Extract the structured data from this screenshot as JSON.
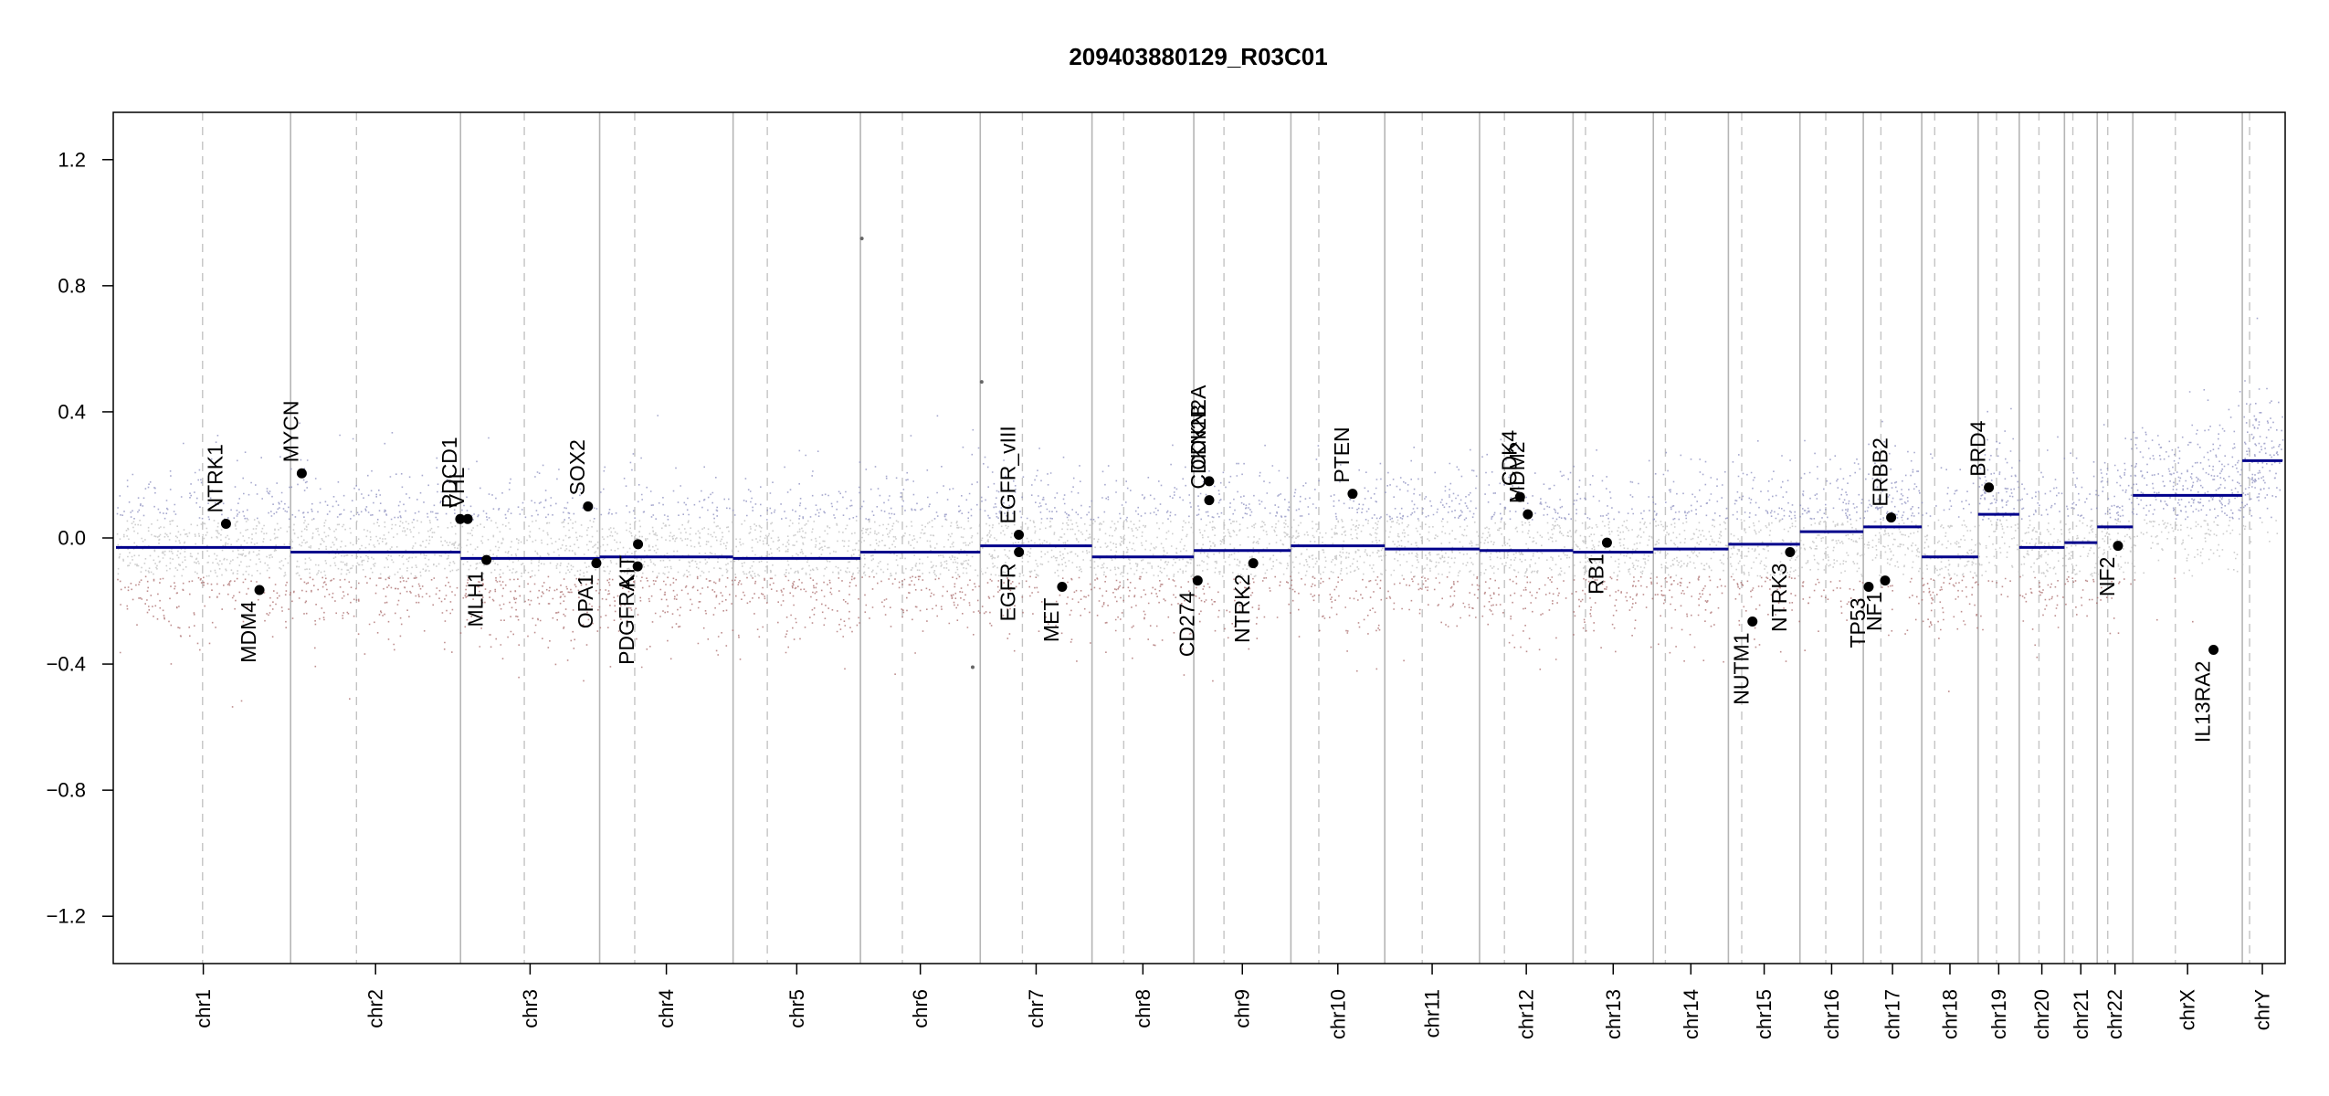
{
  "chart_data": {
    "type": "scatter",
    "title": "209403880129_R03C01",
    "xlabel": "",
    "ylabel": "",
    "ylim": [
      -1.35,
      1.35
    ],
    "yticks": [
      -1.2,
      -0.8,
      -0.4,
      0.0,
      0.4,
      0.8,
      1.2
    ],
    "ytick_labels": [
      "−1.2",
      "−0.8",
      "−0.4",
      "0.0",
      "0.4",
      "0.8",
      "1.2"
    ],
    "grid": false,
    "x_axis_note": "genomic position in Mb, chromosomes concatenated",
    "chromosomes": [
      {
        "name": "chr1",
        "length": 248.9,
        "centromere": 123.4,
        "segments": [
          {
            "start": 0,
            "end": 248.9,
            "value": -0.03
          }
        ]
      },
      {
        "name": "chr2",
        "length": 242.2,
        "centromere": 93.9,
        "segments": [
          {
            "start": 0,
            "end": 242.2,
            "value": -0.045
          }
        ]
      },
      {
        "name": "chr3",
        "length": 198.3,
        "centromere": 90.9,
        "segments": [
          {
            "start": 0,
            "end": 198.3,
            "value": -0.065
          }
        ]
      },
      {
        "name": "chr4",
        "length": 190.2,
        "centromere": 50.0,
        "segments": [
          {
            "start": 0,
            "end": 190.2,
            "value": -0.06
          }
        ]
      },
      {
        "name": "chr5",
        "length": 181.5,
        "centromere": 48.8,
        "segments": [
          {
            "start": 0,
            "end": 181.5,
            "value": -0.065
          }
        ]
      },
      {
        "name": "chr6",
        "length": 170.8,
        "centromere": 59.8,
        "segments": [
          {
            "start": 0,
            "end": 170.8,
            "value": -0.045
          }
        ]
      },
      {
        "name": "chr7",
        "length": 159.3,
        "centromere": 60.1,
        "segments": [
          {
            "start": 0,
            "end": 159.3,
            "value": -0.025
          }
        ]
      },
      {
        "name": "chr8",
        "length": 145.1,
        "centromere": 45.2,
        "segments": [
          {
            "start": 0,
            "end": 145.1,
            "value": -0.06
          }
        ]
      },
      {
        "name": "chr9",
        "length": 138.4,
        "centromere": 43.0,
        "segments": [
          {
            "start": 0,
            "end": 138.4,
            "value": -0.04
          }
        ]
      },
      {
        "name": "chr10",
        "length": 133.8,
        "centromere": 39.8,
        "segments": [
          {
            "start": 0,
            "end": 133.8,
            "value": -0.025
          }
        ]
      },
      {
        "name": "chr11",
        "length": 135.1,
        "centromere": 53.4,
        "segments": [
          {
            "start": 0,
            "end": 135.1,
            "value": -0.035
          }
        ]
      },
      {
        "name": "chr12",
        "length": 133.3,
        "centromere": 35.5,
        "segments": [
          {
            "start": 0,
            "end": 133.3,
            "value": -0.04
          }
        ]
      },
      {
        "name": "chr13",
        "length": 114.4,
        "centromere": 17.7,
        "segments": [
          {
            "start": 0,
            "end": 114.4,
            "value": -0.045
          }
        ]
      },
      {
        "name": "chr14",
        "length": 107.0,
        "centromere": 17.2,
        "segments": [
          {
            "start": 0,
            "end": 107.0,
            "value": -0.035
          }
        ]
      },
      {
        "name": "chr15",
        "length": 102.0,
        "centromere": 19.0,
        "segments": [
          {
            "start": 0,
            "end": 102.0,
            "value": -0.02
          }
        ]
      },
      {
        "name": "chr16",
        "length": 90.3,
        "centromere": 36.8,
        "segments": [
          {
            "start": 0,
            "end": 90.3,
            "value": 0.02
          }
        ]
      },
      {
        "name": "chr17",
        "length": 83.3,
        "centromere": 25.1,
        "segments": [
          {
            "start": 0,
            "end": 83.3,
            "value": 0.035
          }
        ]
      },
      {
        "name": "chr18",
        "length": 80.4,
        "centromere": 18.5,
        "segments": [
          {
            "start": 0,
            "end": 80.4,
            "value": -0.06
          }
        ]
      },
      {
        "name": "chr19",
        "length": 58.6,
        "centromere": 26.2,
        "segments": [
          {
            "start": 0,
            "end": 58.6,
            "value": 0.075
          }
        ]
      },
      {
        "name": "chr20",
        "length": 64.4,
        "centromere": 28.1,
        "segments": [
          {
            "start": 0,
            "end": 64.4,
            "value": -0.03
          }
        ]
      },
      {
        "name": "chr21",
        "length": 46.7,
        "centromere": 12.0,
        "segments": [
          {
            "start": 0,
            "end": 46.7,
            "value": -0.015
          }
        ]
      },
      {
        "name": "chr22",
        "length": 50.8,
        "centromere": 15.0,
        "segments": [
          {
            "start": 0,
            "end": 50.8,
            "value": 0.035
          }
        ]
      },
      {
        "name": "chrX",
        "length": 156.0,
        "centromere": 60.6,
        "segments": [
          {
            "start": 0,
            "end": 156.0,
            "value": 0.135
          }
        ]
      },
      {
        "name": "chrY",
        "length": 57.2,
        "centromere": 10.4,
        "segments": [
          {
            "start": 0,
            "end": 57.2,
            "value": 0.245
          }
        ]
      }
    ],
    "genes": [
      {
        "name": "NTRK1",
        "chr": "chr1",
        "pos": 156.8,
        "value": 0.045,
        "side": "above"
      },
      {
        "name": "MDM4",
        "chr": "chr1",
        "pos": 204.5,
        "value": -0.165,
        "side": "below"
      },
      {
        "name": "MYCN",
        "chr": "chr2",
        "pos": 15.9,
        "value": 0.205,
        "side": "above"
      },
      {
        "name": "PDCD1",
        "chr": "chr2",
        "pos": 241.8,
        "value": 0.06,
        "side": "above"
      },
      {
        "name": "VHL",
        "chr": "chr3",
        "pos": 10.2,
        "value": 0.06,
        "side": "above"
      },
      {
        "name": "MLH1",
        "chr": "chr3",
        "pos": 37.0,
        "value": -0.07,
        "side": "below"
      },
      {
        "name": "SOX2",
        "chr": "chr3",
        "pos": 181.7,
        "value": 0.1,
        "side": "above"
      },
      {
        "name": "OPA1",
        "chr": "chr3",
        "pos": 193.6,
        "value": -0.08,
        "side": "below"
      },
      {
        "name": "PDGFRA",
        "chr": "chr4",
        "pos": 54.2,
        "value": -0.09,
        "side": "below"
      },
      {
        "name": "KIT",
        "chr": "chr4",
        "pos": 54.7,
        "value": -0.02,
        "side": "below"
      },
      {
        "name": "EGFR_vIII",
        "chr": "chr7",
        "pos": 55.0,
        "value": 0.01,
        "side": "above"
      },
      {
        "name": "EGFR",
        "chr": "chr7",
        "pos": 55.2,
        "value": -0.045,
        "side": "below"
      },
      {
        "name": "MET",
        "chr": "chr7",
        "pos": 116.7,
        "value": -0.155,
        "side": "below"
      },
      {
        "name": "CD274",
        "chr": "chr9",
        "pos": 5.5,
        "value": -0.135,
        "side": "below"
      },
      {
        "name": "CDKN2A",
        "chr": "chr9",
        "pos": 21.9,
        "value": 0.18,
        "side": "above"
      },
      {
        "name": "CDKN2B",
        "chr": "chr9",
        "pos": 22.0,
        "value": 0.12,
        "side": "above"
      },
      {
        "name": "NTRK2",
        "chr": "chr9",
        "pos": 84.7,
        "value": -0.08,
        "side": "below"
      },
      {
        "name": "PTEN",
        "chr": "chr10",
        "pos": 87.9,
        "value": 0.14,
        "side": "above"
      },
      {
        "name": "CDK4",
        "chr": "chr12",
        "pos": 57.7,
        "value": 0.13,
        "side": "above"
      },
      {
        "name": "MDM2",
        "chr": "chr12",
        "pos": 68.8,
        "value": 0.075,
        "side": "above"
      },
      {
        "name": "RB1",
        "chr": "chr13",
        "pos": 48.3,
        "value": -0.015,
        "side": "below"
      },
      {
        "name": "NUTM1",
        "chr": "chr15",
        "pos": 34.3,
        "value": -0.265,
        "side": "below"
      },
      {
        "name": "NTRK3",
        "chr": "chr15",
        "pos": 87.9,
        "value": -0.045,
        "side": "below"
      },
      {
        "name": "TP53",
        "chr": "chr17",
        "pos": 7.6,
        "value": -0.155,
        "side": "below"
      },
      {
        "name": "NF1",
        "chr": "chr17",
        "pos": 31.1,
        "value": -0.135,
        "side": "below"
      },
      {
        "name": "ERBB2",
        "chr": "chr17",
        "pos": 39.7,
        "value": 0.065,
        "side": "above"
      },
      {
        "name": "BRD4",
        "chr": "chr19",
        "pos": 15.3,
        "value": 0.16,
        "side": "above"
      },
      {
        "name": "NF2",
        "chr": "chr22",
        "pos": 29.6,
        "value": -0.025,
        "side": "below"
      },
      {
        "name": "IL13RA2",
        "chr": "chrX",
        "pos": 115.0,
        "value": -0.355,
        "side": "below"
      }
    ],
    "probe_colors": {
      "gain": "#8a8cbe",
      "neutral": "#bdbdbd",
      "loss": "#a86a6a"
    },
    "segment_color": "#00008b",
    "highlight_points": [
      {
        "chr": "chr6",
        "pos": 160.0,
        "value": -0.41
      },
      {
        "chr": "chr6",
        "pos": 2.0,
        "value": 0.95
      },
      {
        "chr": "chr7",
        "pos": 2.0,
        "value": 0.495
      }
    ]
  }
}
